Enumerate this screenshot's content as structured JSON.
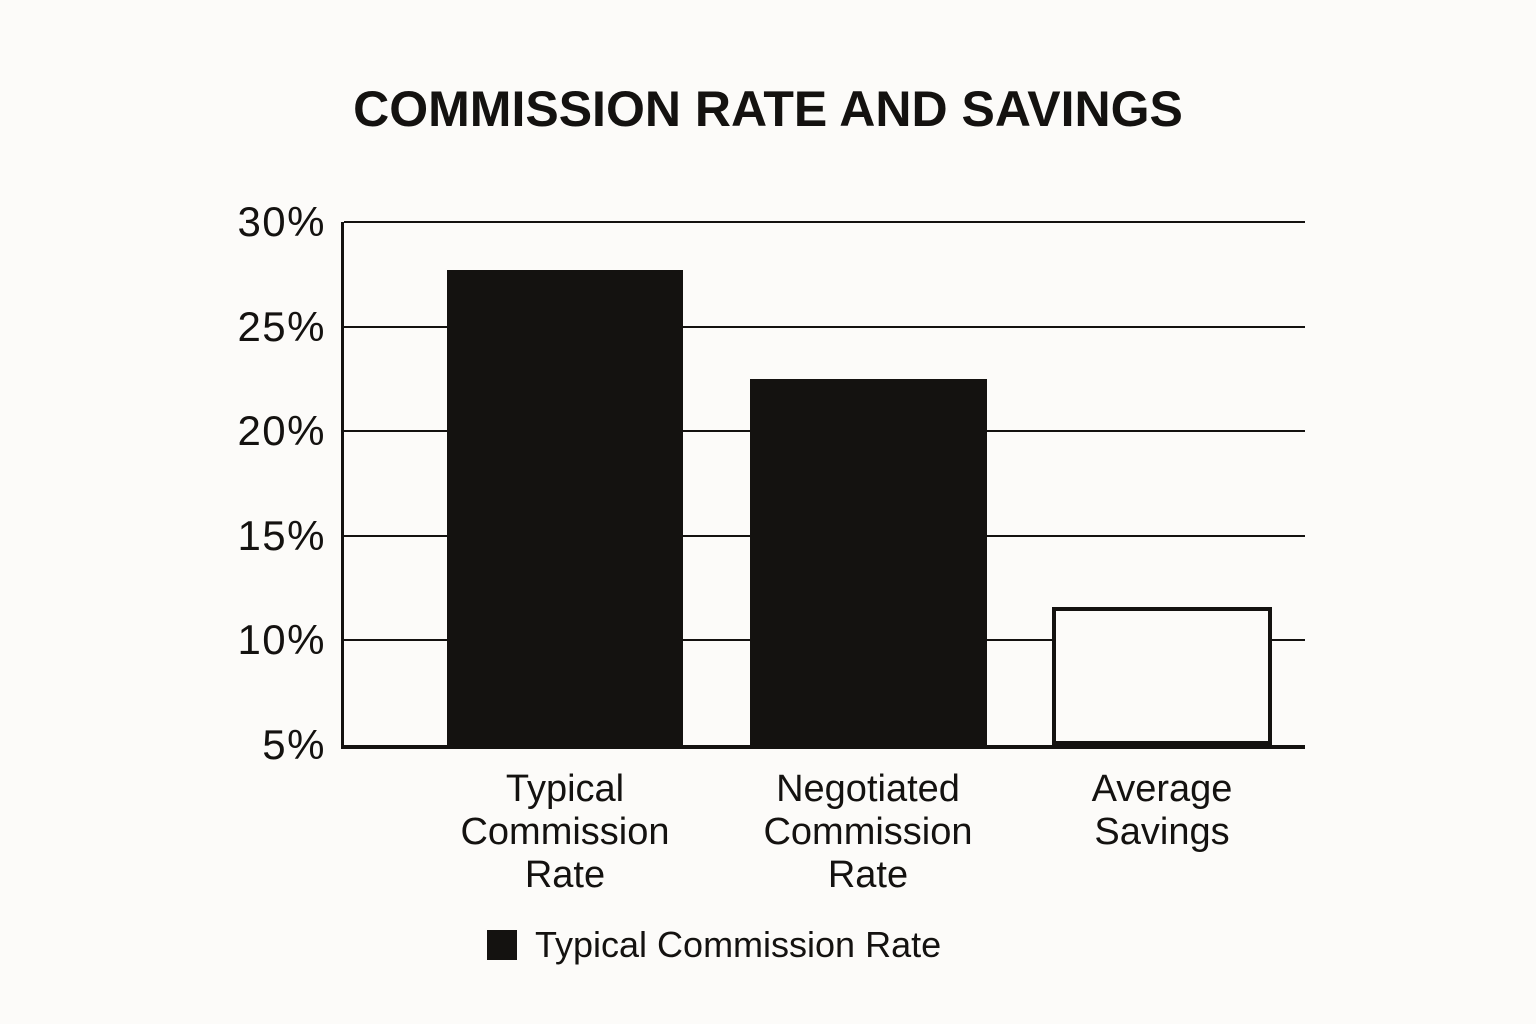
{
  "page": {
    "background": "#fcfbf9",
    "ink": "#141210"
  },
  "chart_data": {
    "type": "bar",
    "title": "COMMISSION RATE AND SAVINGS",
    "categories": [
      "Typical\nCommission\nRate",
      "Negotiated\nCommission\nRate",
      "Average\nSavings"
    ],
    "values": [
      27.7,
      22.5,
      11.6
    ],
    "value_unit": "%",
    "ylim": [
      5,
      30
    ],
    "yticks": [
      30,
      25,
      20,
      15,
      10,
      5
    ],
    "ytick_suffix": "%",
    "grid": true,
    "bar_styles": [
      {
        "fill": "#141210",
        "style": "filled"
      },
      {
        "fill": "#141210",
        "style": "filled"
      },
      {
        "fill": "#fcfbf9",
        "outline": "#141210",
        "style": "outline"
      }
    ],
    "legend": [
      {
        "label": "Typical Commission Rate",
        "swatch_color": "#141210"
      }
    ],
    "legend_position": "bottom",
    "xlabel": "",
    "ylabel": ""
  }
}
